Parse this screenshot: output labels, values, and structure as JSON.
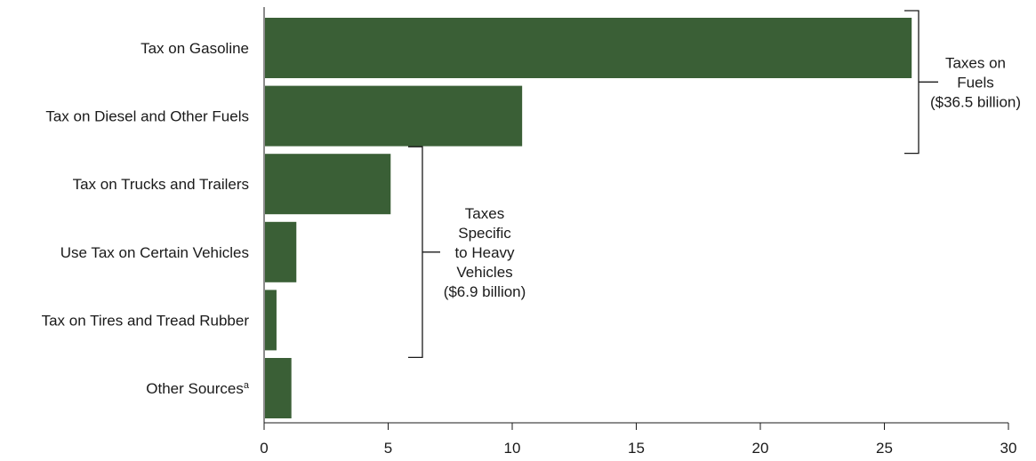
{
  "chart_data": {
    "type": "bar",
    "orientation": "horizontal",
    "title": "",
    "xlabel": "",
    "ylabel": "",
    "categories": [
      "Tax on Gasoline",
      "Tax on Diesel and Other Fuels",
      "Tax on Trucks and Trailers",
      "Use Tax on Certain Vehicles",
      "Tax on Tires and Tread Rubber",
      "Other Sources"
    ],
    "footnote_marks": [
      "",
      "",
      "",
      "",
      "",
      "a"
    ],
    "values": [
      26.1,
      10.4,
      5.1,
      1.3,
      0.5,
      1.1
    ],
    "xlim": [
      0,
      30
    ],
    "xticks": [
      0,
      5,
      10,
      15,
      20,
      25,
      30
    ],
    "bar_color": "#3a5f36",
    "grid": false,
    "annotations": [
      {
        "lines": [
          "Taxes on",
          "Fuels",
          "($36.5 billion)"
        ],
        "categories": [
          "Tax on Gasoline",
          "Tax on Diesel and Other Fuels"
        ]
      },
      {
        "lines": [
          "Taxes",
          "Specific",
          "to Heavy",
          "Vehicles",
          "($6.9 billion)"
        ],
        "categories": [
          "Tax on Trucks and Trailers",
          "Use Tax on Certain Vehicles",
          "Tax on Tires and Tread Rubber"
        ]
      }
    ]
  }
}
